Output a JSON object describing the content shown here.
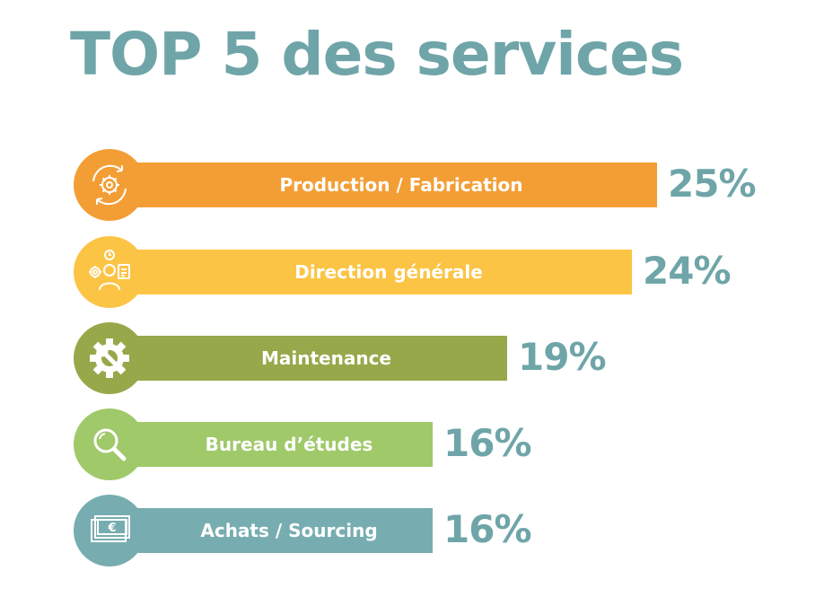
{
  "title": "TOP 5 des services",
  "chart_data": {
    "type": "bar",
    "title": "TOP 5 des services",
    "categories": [
      "Production / Fabrication",
      "Direction générale",
      "Maintenance",
      "Bureau d’études",
      "Achats / Sourcing"
    ],
    "values": [
      25,
      24,
      19,
      16,
      16
    ],
    "value_labels": [
      "25%",
      "24%",
      "19%",
      "16%",
      "16%"
    ],
    "unit": "%",
    "colors": [
      "#f39e35",
      "#fcc445",
      "#96a84a",
      "#a0c96a",
      "#77adb0"
    ],
    "icons": [
      "gears-cycle-icon",
      "manager-tasks-icon",
      "gear-wrench-icon",
      "magnifier-icon",
      "euro-banknote-icon"
    ],
    "value_color": "#6fa5a8",
    "orientation": "horizontal",
    "grid": false
  }
}
